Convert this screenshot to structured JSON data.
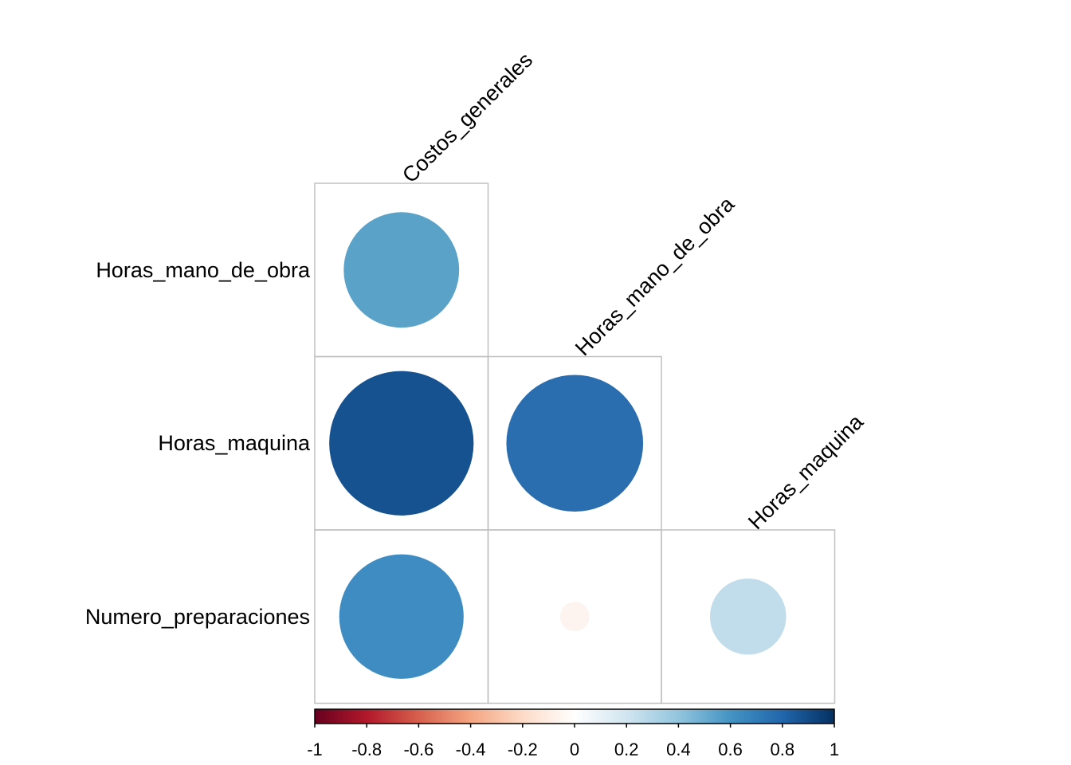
{
  "chart_data": {
    "type": "heatmap",
    "subtype": "correlation-plot-lower-triangle-circles",
    "columns": [
      "Costos_generales",
      "Horas_mano_de_obra",
      "Horas_maquina"
    ],
    "rows": [
      "Horas_mano_de_obra",
      "Horas_maquina",
      "Numero_preparaciones"
    ],
    "cells": [
      {
        "row": "Horas_mano_de_obra",
        "col": "Costos_generales",
        "value": 0.62,
        "color": "#5ba2c9"
      },
      {
        "row": "Horas_maquina",
        "col": "Costos_generales",
        "value": 0.97,
        "color": "#165190"
      },
      {
        "row": "Horas_maquina",
        "col": "Horas_mano_de_obra",
        "value": 0.87,
        "color": "#2a6eb0"
      },
      {
        "row": "Numero_preparaciones",
        "col": "Costos_generales",
        "value": 0.72,
        "color": "#3f8cc2"
      },
      {
        "row": "Numero_preparaciones",
        "col": "Horas_mano_de_obra",
        "value": -0.04,
        "color": "#fdf3ef"
      },
      {
        "row": "Numero_preparaciones",
        "col": "Horas_maquina",
        "value": 0.27,
        "color": "#c1dceb"
      }
    ],
    "colorbar": {
      "range": [
        -1,
        1
      ],
      "ticks": [
        "-1",
        "-0.8",
        "-0.6",
        "-0.4",
        "-0.2",
        "0",
        "0.2",
        "0.4",
        "0.6",
        "0.8",
        "1"
      ],
      "colors": [
        "#67001f",
        "#b2182b",
        "#d6604d",
        "#f4a582",
        "#fddbc7",
        "#ffffff",
        "#d1e5f0",
        "#92c5de",
        "#4393c3",
        "#2166ac",
        "#053061"
      ],
      "placement": "bottom"
    },
    "grid_color": "#c0c0c0"
  }
}
